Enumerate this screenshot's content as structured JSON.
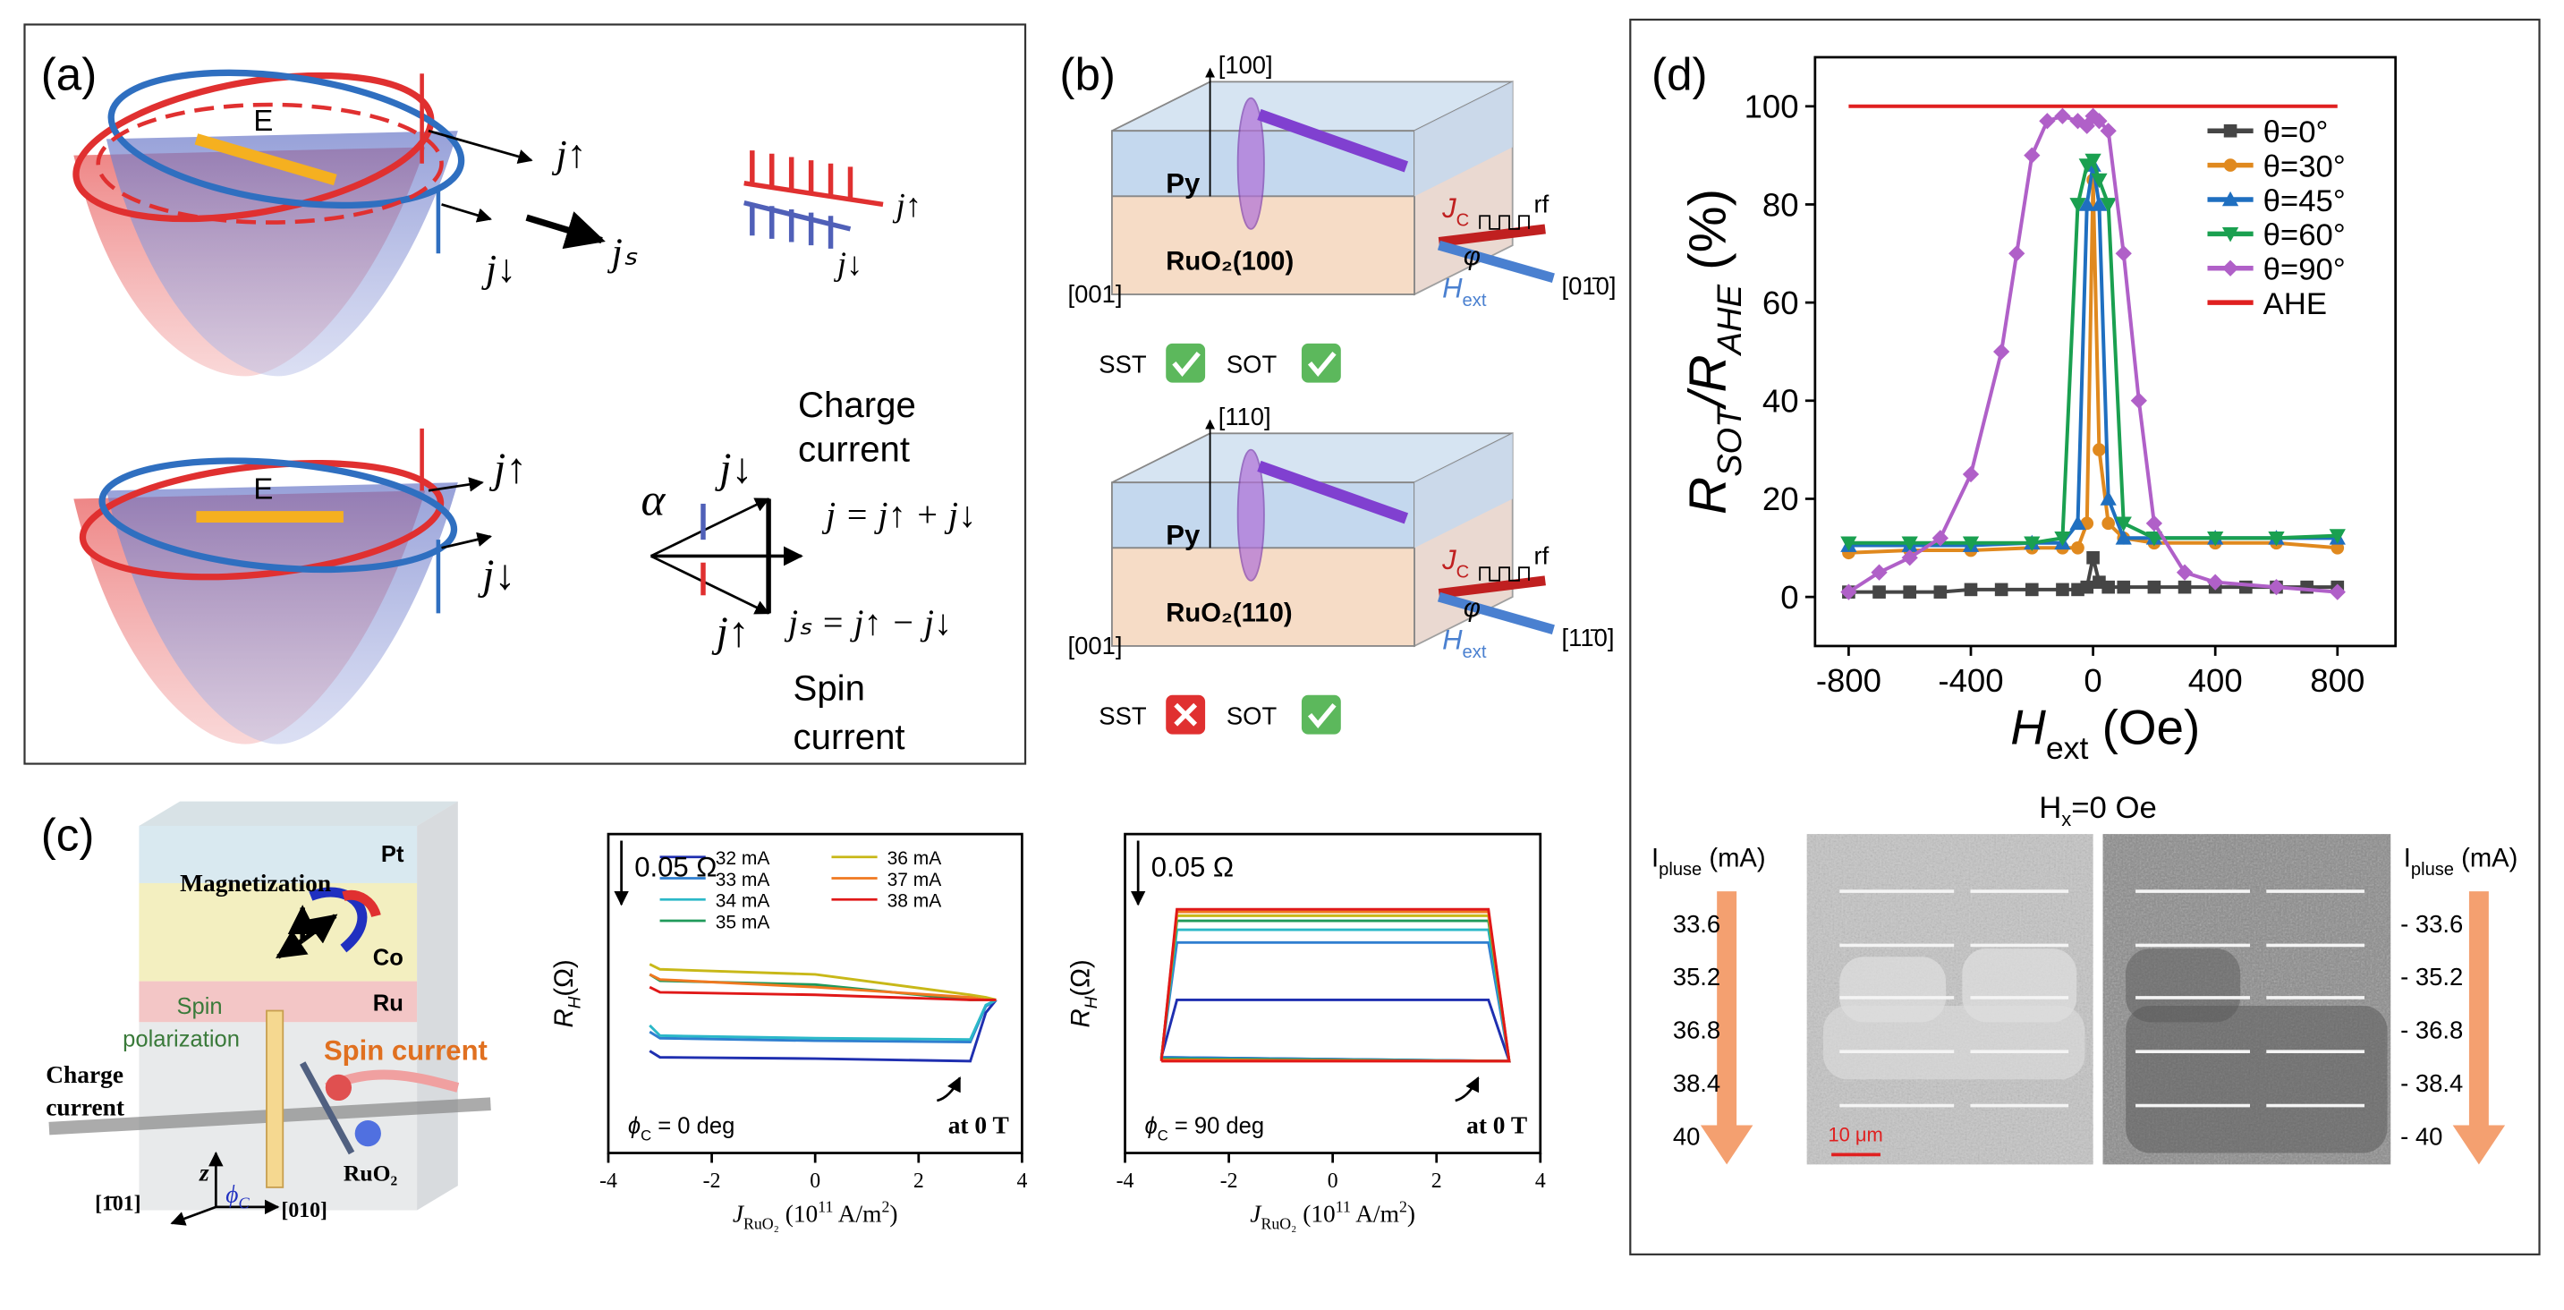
{
  "panels": {
    "a": {
      "label": "(a)",
      "top": {
        "field": "E",
        "j_up": "j↑",
        "j_down": "j↓",
        "j_s": "jₛ"
      },
      "right_top": {
        "j_up": "j↑",
        "j_down": "j↓"
      },
      "bottom": {
        "field": "E",
        "j_up": "j↑",
        "j_down": "j↓"
      },
      "vector": {
        "j_down": "j↓",
        "j_up": "j↑",
        "alpha": "α",
        "charge": [
          "Charge",
          "current"
        ],
        "j_sum": "j = j↑ + j↓",
        "j_diff": "jₛ = j↑ − j↓",
        "spin": [
          "Spin",
          "current"
        ]
      }
    },
    "b": {
      "label": "(b)",
      "devices": [
        {
          "axis_up": "[100]",
          "layer_top": "Py",
          "layer_bottom": "RuO₂(100)",
          "axis_left": "[001]",
          "axis_right": "[01̄0]",
          "current": {
            "main": "J",
            "sub": "C"
          },
          "rf": "rf",
          "angle": "φ",
          "field": {
            "main": "H",
            "sub": "ext"
          },
          "sst": "SST",
          "sot": "SOT",
          "sst_ok": true,
          "sot_ok": true
        },
        {
          "axis_up": "[110]",
          "layer_top": "Py",
          "layer_bottom": "RuO₂(110)",
          "axis_left": "[001]",
          "axis_right": "[11̄0]",
          "current": {
            "main": "J",
            "sub": "C"
          },
          "rf": "rf",
          "angle": "φ",
          "field": {
            "main": "H",
            "sub": "ext"
          },
          "sst": "SST",
          "sot": "SOT",
          "sst_ok": false,
          "sot_ok": true
        }
      ]
    },
    "c": {
      "label": "(c)",
      "layers": {
        "pt": "Pt",
        "co": "Co",
        "ru": "Ru",
        "ruo2": "RuO₂"
      },
      "magnetization": "Magnetization",
      "spin_polarization": [
        "Spin",
        "polarization"
      ],
      "spin_current": "Spin current",
      "charge_current": [
        "Charge",
        "current"
      ],
      "z": "z",
      "phi": {
        "main": "ϕ",
        "sub": "C"
      },
      "axis_a": "[1̄01]",
      "axis_b": "[010]"
    },
    "d": {
      "label": "(d)",
      "image": {
        "title": {
          "main": "H",
          "sub": "x",
          "rest": "=0 Oe"
        },
        "left_axis": {
          "main": "I",
          "sub": "pluse",
          "rest": " (mA)",
          "ticks": [
            "33.6",
            "35.2",
            "36.8",
            "38.4",
            "40"
          ]
        },
        "right_axis": {
          "main": "I",
          "sub": "pluse",
          "rest": " (mA)",
          "ticks": [
            "- 33.6",
            "- 35.2",
            "- 36.8",
            "- 38.4",
            "- 40"
          ]
        },
        "scale": "10 μm"
      }
    }
  },
  "chart_data": [
    {
      "type": "line",
      "ylabel": {
        "main": "R",
        "sub": "SOT",
        "mid": "/R",
        "sub2": "AHE",
        "rest": " (%)"
      },
      "xlabel": {
        "main": "H",
        "sub": "ext",
        "rest": " (Oe)"
      },
      "xlim": [
        -910,
        990
      ],
      "ylim": [
        -10,
        110
      ],
      "xticks": [
        -800,
        -400,
        0,
        400,
        800
      ],
      "yticks": [
        0,
        20,
        40,
        60,
        80,
        100
      ],
      "legend": "upper right",
      "series": [
        {
          "name": "θ=0°",
          "color": "#454545",
          "marker": "square",
          "x": [
            -800,
            -700,
            -600,
            -500,
            -400,
            -300,
            -200,
            -100,
            -50,
            -20,
            0,
            20,
            50,
            100,
            200,
            300,
            400,
            500,
            600,
            700,
            800
          ],
          "values": [
            1,
            1,
            1,
            1,
            1.5,
            1.5,
            1.5,
            1.5,
            1.5,
            2,
            8,
            3,
            2,
            2,
            2,
            2,
            2,
            2,
            2,
            2,
            2
          ]
        },
        {
          "name": "θ=30°",
          "color": "#e0891e",
          "marker": "circle",
          "x": [
            -800,
            -600,
            -400,
            -200,
            -100,
            -50,
            -20,
            0,
            20,
            50,
            100,
            200,
            400,
            600,
            800
          ],
          "values": [
            9,
            9.5,
            9.5,
            10,
            10,
            10,
            15,
            85,
            30,
            15,
            12,
            11,
            11,
            11,
            10
          ]
        },
        {
          "name": "θ=45°",
          "color": "#1f6fc0",
          "marker": "triangle",
          "x": [
            -800,
            -600,
            -400,
            -200,
            -100,
            -50,
            -20,
            0,
            20,
            50,
            100,
            200,
            400,
            600,
            800
          ],
          "values": [
            10.5,
            10.5,
            10.5,
            11,
            11,
            15,
            80,
            88,
            80,
            20,
            12,
            12,
            12,
            12,
            12
          ]
        },
        {
          "name": "θ=60°",
          "color": "#1aa050",
          "marker": "triangle-down",
          "x": [
            -800,
            -600,
            -400,
            -200,
            -100,
            -50,
            -20,
            0,
            20,
            50,
            100,
            200,
            400,
            600,
            800
          ],
          "values": [
            11,
            11,
            11,
            11,
            12,
            80,
            88,
            89,
            85,
            80,
            15,
            12,
            12,
            12,
            12.5
          ]
        },
        {
          "name": "θ=90°",
          "color": "#b060c8",
          "marker": "diamond",
          "x": [
            -800,
            -700,
            -600,
            -500,
            -400,
            -300,
            -250,
            -200,
            -150,
            -100,
            -50,
            -20,
            0,
            20,
            50,
            100,
            150,
            200,
            300,
            400,
            600,
            800
          ],
          "values": [
            1,
            5,
            8,
            12,
            25,
            50,
            70,
            90,
            97,
            98,
            97,
            96,
            98,
            97,
            95,
            70,
            40,
            15,
            5,
            3,
            2,
            1
          ]
        },
        {
          "name": "AHE",
          "color": "#e02020",
          "x": [
            -800,
            800
          ],
          "values": [
            100,
            100
          ]
        }
      ]
    },
    {
      "type": "line",
      "scale_bar": "0.05 Ω",
      "ylabel": {
        "main": "R",
        "sub": "H",
        "rest": "(Ω)"
      },
      "xlabel": {
        "main": "J",
        "sub": "RuO₂",
        "rest": " (10",
        "sup": "11",
        "rest2": " A/m",
        "sup2": "2",
        "close": ")"
      },
      "annotation": {
        "phi": {
          "main": "ϕ",
          "sub": "C",
          "rest": " = 0 deg"
        },
        "field": "at 0 T"
      },
      "xlim": [
        -4,
        4
      ],
      "ylim": [
        -0.12,
        0.13
      ],
      "xticks": [
        -4,
        -2,
        0,
        2,
        4
      ],
      "legend": "upper center",
      "legend_columns": 2,
      "x": [
        -3.2,
        -3.0,
        0,
        3.0,
        3.3,
        3.5
      ],
      "series": [
        {
          "name": "32 mA",
          "color": "#1f2fb0",
          "values": [
            -0.04,
            -0.045,
            -0.046,
            -0.048,
            -0.01,
            0.0
          ]
        },
        {
          "name": "33 mA",
          "color": "#2f7fd0",
          "values": [
            -0.025,
            -0.03,
            -0.032,
            -0.033,
            -0.005,
            0.0
          ]
        },
        {
          "name": "34 mA",
          "color": "#2bb8c8",
          "values": [
            -0.02,
            -0.028,
            -0.03,
            -0.031,
            -0.004,
            0.0
          ]
        },
        {
          "name": "35 mA",
          "color": "#1f9a5a",
          "values": [
            0.02,
            0.015,
            0.012,
            0.0,
            0.0,
            0.0
          ]
        },
        {
          "name": "36 mA",
          "color": "#c8b818",
          "values": [
            0.028,
            0.024,
            0.02,
            0.004,
            0.002,
            0.0
          ]
        },
        {
          "name": "37 mA",
          "color": "#f07820",
          "values": [
            0.02,
            0.016,
            0.01,
            0.002,
            0.0,
            0.0
          ]
        },
        {
          "name": "38 mA",
          "color": "#e01818",
          "values": [
            0.01,
            0.006,
            0.004,
            0.0,
            0.0,
            0.0
          ]
        }
      ]
    },
    {
      "type": "line",
      "scale_bar": "0.05 Ω",
      "ylabel": {
        "main": "R",
        "sub": "H",
        "rest": "(Ω)"
      },
      "xlabel": {
        "main": "J",
        "sub": "RuO₂",
        "rest": " (10",
        "sup": "11",
        "rest2": " A/m",
        "sup2": "2",
        "close": ")"
      },
      "annotation": {
        "phi": {
          "main": "ϕ",
          "sub": "C",
          "rest": " = 90 deg"
        },
        "field": "at 0 T"
      },
      "xlim": [
        -4,
        4
      ],
      "ylim": [
        -0.12,
        0.13
      ],
      "xticks": [
        -4,
        -2,
        0,
        2,
        4
      ],
      "x": [
        -3.3,
        -3.0,
        3.0,
        3.4,
        -3.3
      ],
      "series": [
        {
          "color": "#1f2fb0",
          "values": [
            -0.045,
            0.0,
            0.0,
            -0.048,
            -0.045
          ]
        },
        {
          "color": "#2f7fd0",
          "values": [
            -0.045,
            0.045,
            0.045,
            -0.048,
            -0.045
          ]
        },
        {
          "color": "#2bb8c8",
          "values": [
            -0.046,
            0.055,
            0.055,
            -0.048,
            -0.046
          ]
        },
        {
          "color": "#1f9a5a",
          "values": [
            -0.046,
            0.062,
            0.062,
            -0.048,
            -0.046
          ]
        },
        {
          "color": "#c8b818",
          "values": [
            -0.047,
            0.066,
            0.066,
            -0.048,
            -0.047
          ]
        },
        {
          "color": "#f07820",
          "values": [
            -0.047,
            0.069,
            0.069,
            -0.048,
            -0.047
          ]
        },
        {
          "color": "#e01818",
          "values": [
            -0.048,
            0.071,
            0.071,
            -0.048,
            -0.048
          ]
        }
      ]
    }
  ]
}
